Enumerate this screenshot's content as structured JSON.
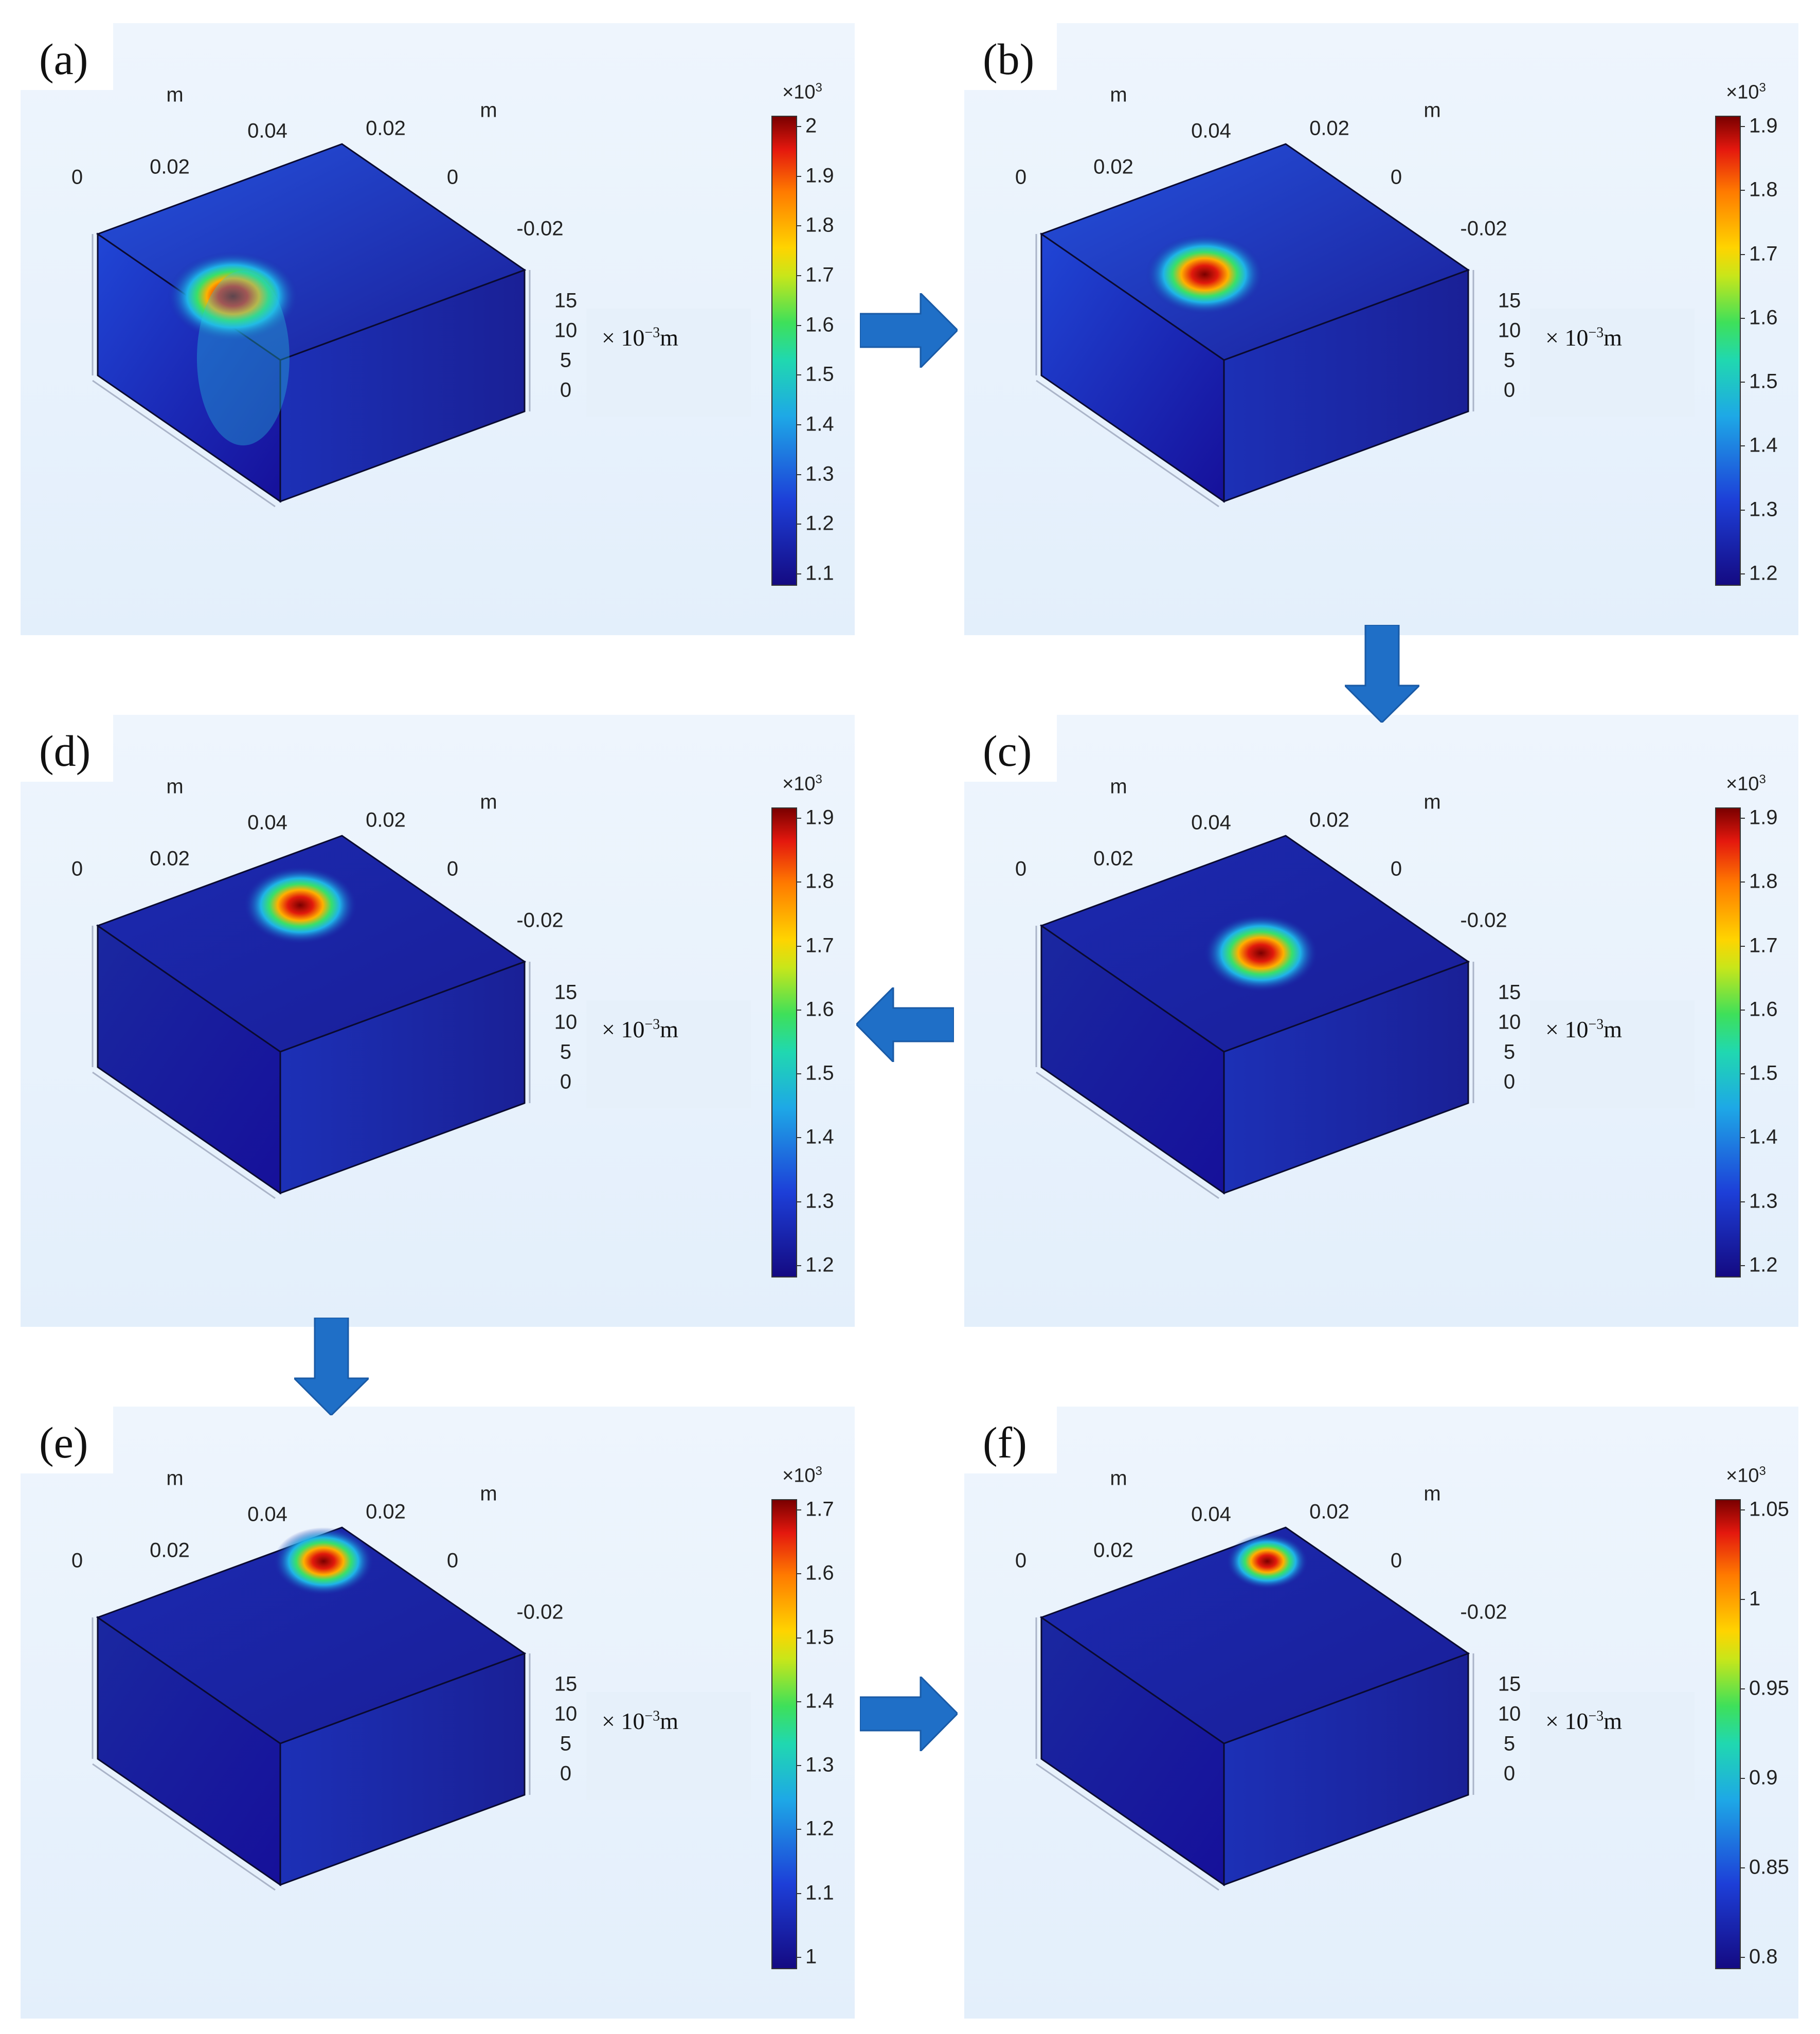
{
  "panels": [
    {
      "id": "a",
      "label": "(a)",
      "top_axis": [
        "m",
        "0.04",
        "0.02",
        "m"
      ],
      "left_axis": [
        "0",
        "0.02"
      ],
      "right_axis": [
        "0",
        "-0.02"
      ],
      "z_ticks": [
        "15",
        "10",
        "5",
        "0"
      ],
      "unit": "× 10",
      "unit_exp": "−3",
      "unit_tail": "m",
      "cbar_exp": "×10",
      "cbar_exp_sup": "3",
      "cbar_ticks": [
        "2",
        "1.9",
        "1.8",
        "1.7",
        "1.6",
        "1.5",
        "1.4",
        "1.3",
        "1.2",
        "1.1"
      ],
      "spot": "edge-front-left"
    },
    {
      "id": "b",
      "label": "(b)",
      "top_axis": [
        "m",
        "0.04",
        "0.02",
        "m"
      ],
      "left_axis": [
        "0",
        "0.02"
      ],
      "right_axis": [
        "0",
        "-0.02"
      ],
      "z_ticks": [
        "15",
        "10",
        "5",
        "0"
      ],
      "unit": "× 10",
      "unit_exp": "−3",
      "unit_tail": "m",
      "cbar_exp": "×10",
      "cbar_exp_sup": "3",
      "cbar_ticks": [
        "1.9",
        "1.8",
        "1.7",
        "1.6",
        "1.5",
        "1.4",
        "1.3",
        "1.2"
      ],
      "spot": "near-front"
    },
    {
      "id": "c",
      "label": "(c)",
      "top_axis": [
        "m",
        "0.04",
        "0.02",
        "m"
      ],
      "left_axis": [
        "0",
        "0.02"
      ],
      "right_axis": [
        "0",
        "-0.02"
      ],
      "z_ticks": [
        "15",
        "10",
        "5",
        "0"
      ],
      "unit": "× 10",
      "unit_exp": "−3",
      "unit_tail": "m",
      "cbar_exp": "×10",
      "cbar_exp_sup": "3",
      "cbar_ticks": [
        "1.9",
        "1.8",
        "1.7",
        "1.6",
        "1.5",
        "1.4",
        "1.3",
        "1.2"
      ],
      "spot": "center"
    },
    {
      "id": "d",
      "label": "(d)",
      "top_axis": [
        "m",
        "0.04",
        "0.02",
        "m"
      ],
      "left_axis": [
        "0",
        "0.02"
      ],
      "right_axis": [
        "0",
        "-0.02"
      ],
      "z_ticks": [
        "15",
        "10",
        "5",
        "0"
      ],
      "unit": "× 10",
      "unit_exp": "−3",
      "unit_tail": "m",
      "cbar_exp": "×10",
      "cbar_exp_sup": "3",
      "cbar_ticks": [
        "1.9",
        "1.8",
        "1.7",
        "1.6",
        "1.5",
        "1.4",
        "1.3",
        "1.2"
      ],
      "spot": "back-right"
    },
    {
      "id": "e",
      "label": "(e)",
      "top_axis": [
        "m",
        "0.04",
        "0.02",
        "m"
      ],
      "left_axis": [
        "0",
        "0.02"
      ],
      "right_axis": [
        "0",
        "-0.02"
      ],
      "z_ticks": [
        "15",
        "10",
        "5",
        "0"
      ],
      "unit": "× 10",
      "unit_exp": "−3",
      "unit_tail": "m",
      "cbar_exp": "×10",
      "cbar_exp_sup": "3",
      "cbar_ticks": [
        "1.7",
        "1.6",
        "1.5",
        "1.4",
        "1.3",
        "1.2",
        "1.1",
        "1"
      ],
      "spot": "far-corner"
    },
    {
      "id": "f",
      "label": "(f)",
      "top_axis": [
        "m",
        "0.04",
        "0.02",
        "m"
      ],
      "left_axis": [
        "0",
        "0.02"
      ],
      "right_axis": [
        "0",
        "-0.02"
      ],
      "z_ticks": [
        "15",
        "10",
        "5",
        "0"
      ],
      "unit": "× 10",
      "unit_exp": "−3",
      "unit_tail": "m",
      "cbar_exp": "×10",
      "cbar_exp_sup": "3",
      "cbar_ticks": [
        "1.05",
        "1",
        "0.95",
        "0.9",
        "0.85",
        "0.8"
      ],
      "spot": "far-corner-small"
    }
  ],
  "colors": {
    "cube_top": "#1a2aa8",
    "cube_dark": "#170d86",
    "hot": "#c80000",
    "arrow": "#1f6fc7"
  }
}
